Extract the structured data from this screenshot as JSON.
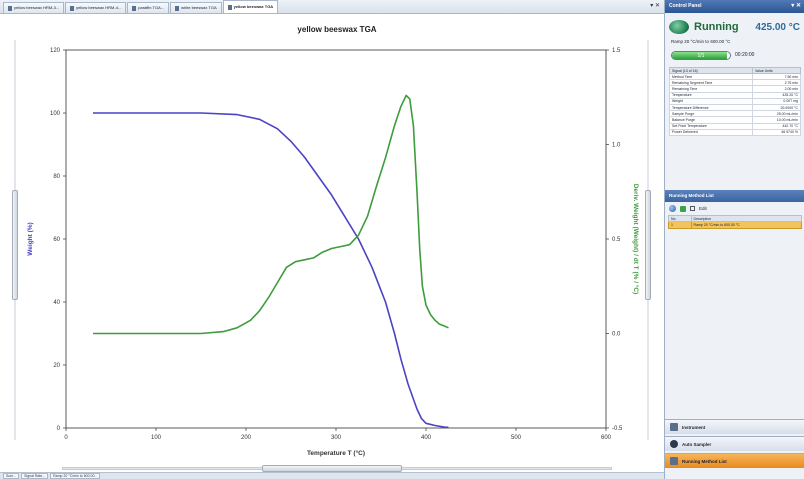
{
  "tabs": [
    {
      "label": "yellow beeswax HRM-3...",
      "active": false
    },
    {
      "label": "yellow beeswax HRM-4...",
      "active": false
    },
    {
      "label": "paraffin TGA...",
      "active": false
    },
    {
      "label": "white beeswax TGA",
      "active": false
    },
    {
      "label": "yellow beeswax TGA",
      "active": true
    }
  ],
  "chart_data": {
    "type": "line",
    "title": "yellow beeswax TGA",
    "xlabel": "Temperature  T (°C)",
    "ylabel": "Weight (%)",
    "y2label": "Deriv. Weight (Weight) / dt T (% / °C)",
    "xlim": [
      0,
      600
    ],
    "ylim": [
      0,
      120
    ],
    "y2lim": [
      -0.5,
      1.5
    ],
    "xticks": [
      "0",
      "100",
      "200",
      "300",
      "400",
      "500",
      "600"
    ],
    "yticks": [
      "0",
      "20",
      "40",
      "60",
      "80",
      "100",
      "120"
    ],
    "y2ticks": [
      "-0.5",
      "0.0",
      "0.5",
      "1.0",
      "1.5"
    ],
    "series": [
      {
        "color": "#4a44c4",
        "axis": "left",
        "x": [
          30,
          100,
          150,
          190,
          215,
          235,
          250,
          265,
          280,
          295,
          310,
          325,
          340,
          355,
          365,
          372,
          380,
          390,
          395,
          400,
          410,
          420,
          425
        ],
        "y": [
          100,
          100,
          100,
          99.5,
          98,
          95,
          91,
          86,
          80,
          74,
          67,
          60,
          51,
          40,
          30,
          22,
          14,
          6,
          3,
          1.5,
          0.8,
          0.3,
          0.2
        ]
      },
      {
        "color": "#3d9c3d",
        "axis": "right",
        "x": [
          30,
          100,
          150,
          175,
          190,
          205,
          215,
          225,
          235,
          245,
          255,
          265,
          275,
          285,
          295,
          305,
          315,
          325,
          335,
          345,
          355,
          365,
          372,
          378,
          382,
          386,
          390,
          393,
          396,
          400,
          405,
          410,
          415,
          420,
          425
        ],
        "y": [
          0.0,
          0.0,
          0.0,
          0.01,
          0.03,
          0.07,
          0.12,
          0.19,
          0.27,
          0.35,
          0.38,
          0.39,
          0.4,
          0.43,
          0.45,
          0.46,
          0.47,
          0.52,
          0.62,
          0.78,
          0.93,
          1.1,
          1.2,
          1.26,
          1.24,
          1.1,
          0.75,
          0.45,
          0.25,
          0.15,
          0.1,
          0.07,
          0.05,
          0.04,
          0.03
        ]
      }
    ]
  },
  "panel": {
    "title": "Control Panel",
    "status": "Running",
    "temperature": "425.00 °C",
    "segment": "Ramp 20 °C/min to 600.00 °C",
    "progress_label": "1/1",
    "progress_fraction": 0.95,
    "elapsed": "00:20:00",
    "signal_headers": [
      "Signal (13 of 16)",
      "Value   Units"
    ],
    "signals": [
      [
        "Method Time",
        "7.50 min"
      ],
      [
        "Remaining Segment Time",
        "2.75 min"
      ],
      [
        "Remaining Time",
        "2.00 min"
      ],
      [
        "Temperature",
        "425.20 °C"
      ],
      [
        "Weight",
        "0.007 mg"
      ],
      [
        "Temperature Difference",
        "20.0000 °C"
      ],
      [
        "Sample Purge",
        "25.00 mL/min"
      ],
      [
        "Balance Purge",
        "10.00 mL/min"
      ],
      [
        "Set Point Temperature",
        "442.70 °C"
      ],
      [
        "Power Delivered",
        "46.9740 %"
      ]
    ],
    "method_section_title": "Running Method List",
    "method_tool_label": "Edit",
    "method_headers": [
      "No.",
      "Description"
    ],
    "method_rows": [
      [
        "1",
        "Ramp 20 °C/min to 600.00 °C"
      ]
    ],
    "nav": [
      "Instrument",
      "Auto Sampler",
      "Running Method List"
    ]
  },
  "bottom_tabs": [
    "Sum...",
    "Signal Rate...",
    "Ramp 20 °C/min to 600.00..."
  ]
}
